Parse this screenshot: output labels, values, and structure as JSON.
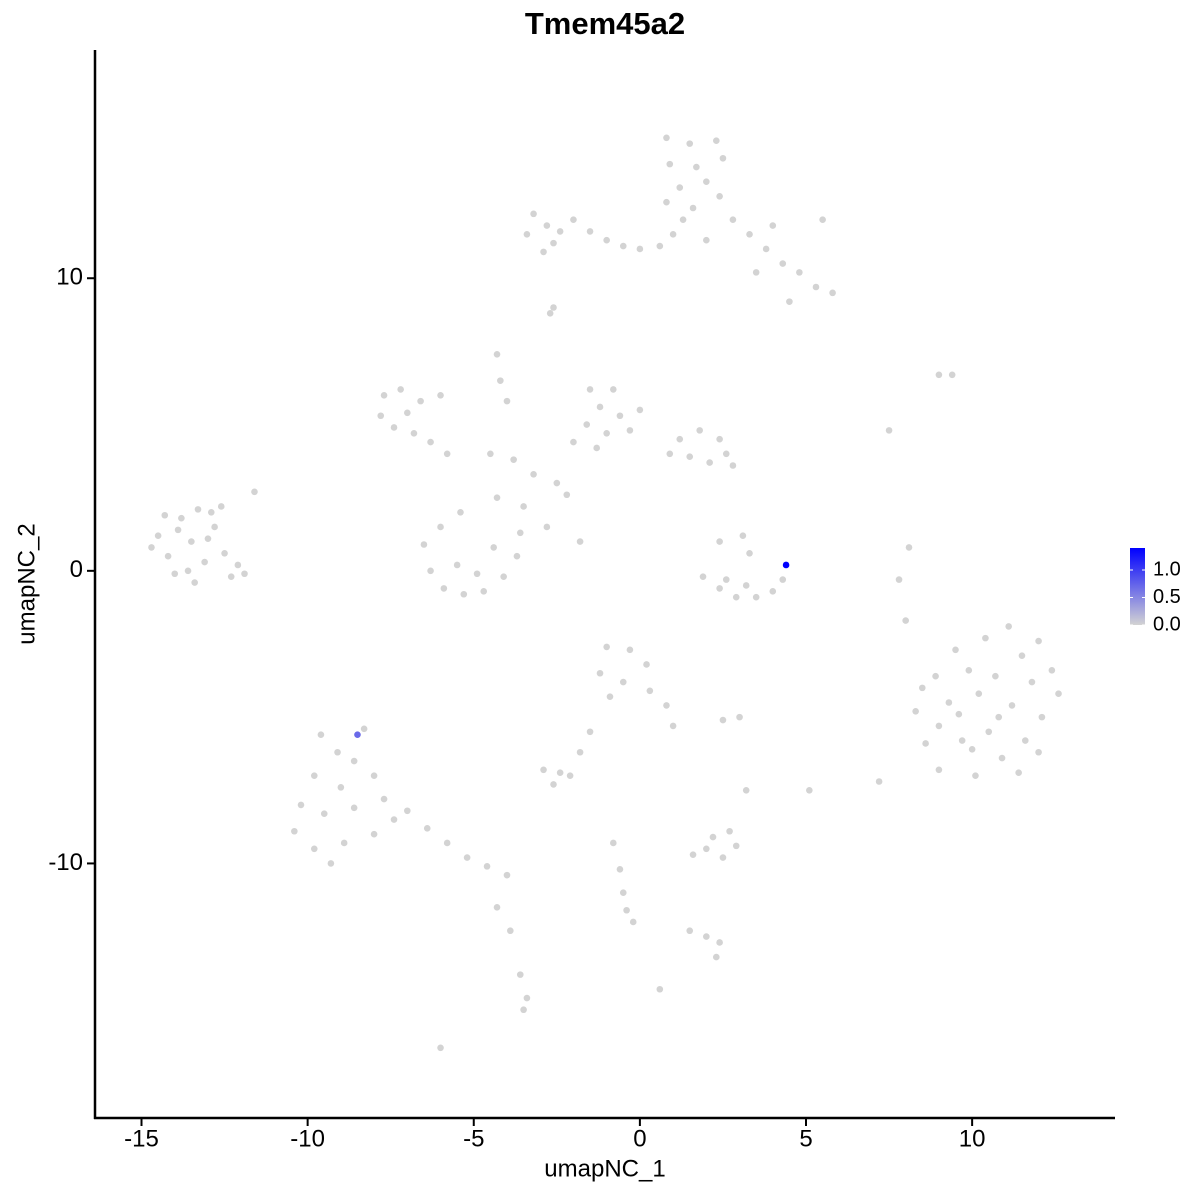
{
  "chart_data": {
    "type": "scatter",
    "title": "Tmem45a2",
    "x_label": "umapNC_1",
    "y_label": "umapNC_2",
    "x": [
      -14.5,
      -14.2,
      -13.8,
      -13.5,
      -13.1,
      -12.8,
      -13.3,
      -14.0,
      -12.5,
      -13.9,
      -12.9,
      -14.7,
      -13.6,
      -12.3,
      -13.0,
      -12.1,
      -14.3,
      -13.4,
      -11.6,
      -12.6,
      -11.9,
      0.8,
      1.5,
      2.3,
      0.9,
      1.7,
      2.5,
      1.2,
      2.0,
      0.8,
      1.6,
      2.4,
      1.3,
      2.8,
      3.3,
      3.8,
      4.3,
      4.8,
      5.3,
      5.8,
      4.0,
      5.5,
      3.5,
      4.5,
      2.0,
      1.0,
      0.6,
      -3.2,
      -2.8,
      -2.4,
      -2.0,
      -2.6,
      -1.5,
      -1.0,
      -0.5,
      0.0,
      -3.4,
      -2.9,
      -2.7,
      -2.6,
      -7.7,
      -7.2,
      -6.6,
      -7.8,
      -7.4,
      -6.8,
      -6.3,
      -5.8,
      -7.0,
      -6.0,
      -1.5,
      -0.8,
      -1.2,
      -0.6,
      -1.6,
      -1.0,
      -0.3,
      -2.0,
      0.0,
      -1.3,
      1.2,
      1.8,
      2.4,
      1.5,
      2.1,
      2.6,
      0.9,
      2.8,
      -4.5,
      -3.8,
      -3.2,
      -2.5,
      -2.2,
      -3.5,
      -4.3,
      -2.8,
      -1.8,
      -4.3,
      -4.2,
      -4.0,
      -6.5,
      -6.3,
      -5.9,
      -5.3,
      -4.7,
      -4.1,
      -3.7,
      -3.6,
      -5.5,
      -4.9,
      -4.4,
      -6.0,
      -5.4,
      1.9,
      2.4,
      2.9,
      3.5,
      4.0,
      4.3,
      3.2,
      2.6,
      3.1,
      3.3,
      2.4,
      8.3,
      8.6,
      8.9,
      9.0,
      9.3,
      9.5,
      9.7,
      9.9,
      10.1,
      10.2,
      10.4,
      10.5,
      10.7,
      10.9,
      11.1,
      11.2,
      11.5,
      11.6,
      11.8,
      12.0,
      12.1,
      12.4,
      12.6,
      9.6,
      10.8,
      11.4,
      9.0,
      10.0,
      12.0,
      8.5,
      8.1,
      7.8,
      8.0,
      9.4,
      9.0,
      7.5,
      -1.0,
      -0.3,
      0.2,
      -1.2,
      -0.5,
      0.3,
      -0.9,
      0.8,
      1.0,
      -1.5,
      -1.8,
      3.0,
      2.5,
      -9.6,
      -9.1,
      -8.3,
      -8.6,
      -9.8,
      -9.0,
      -8.0,
      -10.2,
      -9.5,
      -8.6,
      -7.7,
      -10.4,
      -9.8,
      -8.9,
      -8.0,
      -9.3,
      -7.4,
      -7.0,
      -6.4,
      -5.8,
      -5.2,
      -4.6,
      -4.0,
      -4.3,
      -3.9,
      -3.6,
      -3.4,
      -3.5,
      -6.0,
      -2.9,
      -2.4,
      -2.6,
      -2.1,
      1.6,
      2.0,
      2.5,
      2.9,
      2.2,
      2.7,
      7.2,
      5.1,
      3.2,
      -0.8,
      -0.6,
      -0.5,
      -0.4,
      -0.2,
      1.5,
      2.0,
      2.4,
      2.3,
      0.6,
      4.4,
      -8.5
    ],
    "y": [
      1.2,
      0.5,
      1.8,
      1.0,
      0.3,
      1.5,
      2.1,
      -0.1,
      0.6,
      1.4,
      2.0,
      0.8,
      0.0,
      -0.2,
      1.1,
      0.2,
      1.9,
      -0.4,
      2.7,
      2.2,
      -0.1,
      14.8,
      14.6,
      14.7,
      13.9,
      13.8,
      14.1,
      13.1,
      13.3,
      12.6,
      12.4,
      12.8,
      12.0,
      12.0,
      11.5,
      11.0,
      10.5,
      10.2,
      9.7,
      9.5,
      11.8,
      12.0,
      10.2,
      9.2,
      11.3,
      11.5,
      11.1,
      12.2,
      11.8,
      11.6,
      12.0,
      11.2,
      11.6,
      11.3,
      11.1,
      11.0,
      11.5,
      10.9,
      8.8,
      9.0,
      6.0,
      6.2,
      5.8,
      5.3,
      4.9,
      4.7,
      4.4,
      4.0,
      5.4,
      6.0,
      6.2,
      6.2,
      5.6,
      5.3,
      5.0,
      4.7,
      4.8,
      4.4,
      5.5,
      4.2,
      4.5,
      4.8,
      4.5,
      3.9,
      3.7,
      4.0,
      4.0,
      3.6,
      4.0,
      3.8,
      3.3,
      3.0,
      2.6,
      2.2,
      2.5,
      1.5,
      1.0,
      7.4,
      6.5,
      5.8,
      0.9,
      0.0,
      -0.6,
      -0.8,
      -0.7,
      -0.2,
      0.5,
      1.3,
      0.2,
      -0.1,
      0.8,
      1.5,
      2.0,
      -0.2,
      -0.6,
      -0.9,
      -0.9,
      -0.7,
      -0.3,
      -0.5,
      -0.3,
      1.2,
      0.6,
      1.0,
      -4.8,
      -5.9,
      -3.6,
      -6.8,
      -4.5,
      -2.7,
      -5.8,
      -3.4,
      -7.0,
      -4.2,
      -2.3,
      -5.5,
      -3.6,
      -6.4,
      -1.9,
      -4.6,
      -2.9,
      -5.8,
      -3.8,
      -2.4,
      -5.0,
      -3.4,
      -4.2,
      -4.9,
      -5.0,
      -6.9,
      -5.3,
      -6.1,
      -6.2,
      -4.0,
      0.8,
      -0.3,
      -1.7,
      6.7,
      6.7,
      4.8,
      -2.6,
      -2.7,
      -3.2,
      -3.5,
      -3.8,
      -4.1,
      -4.3,
      -4.6,
      -5.3,
      -5.5,
      -6.2,
      -5.0,
      -5.1,
      -5.6,
      -6.2,
      -5.4,
      -6.5,
      -7.0,
      -7.4,
      -7.0,
      -8.0,
      -8.3,
      -8.1,
      -7.8,
      -8.9,
      -9.5,
      -9.3,
      -9.0,
      -10.0,
      -8.5,
      -8.2,
      -8.8,
      -9.3,
      -9.8,
      -10.1,
      -10.4,
      -11.5,
      -12.3,
      -13.8,
      -14.6,
      -15.0,
      -16.3,
      -6.8,
      -6.9,
      -7.3,
      -7.0,
      -9.7,
      -9.5,
      -9.8,
      -9.4,
      -9.1,
      -8.9,
      -7.2,
      -7.5,
      -7.5,
      -9.3,
      -10.2,
      -11.0,
      -11.6,
      -12.0,
      -12.3,
      -12.5,
      -12.7,
      -13.2,
      -14.3,
      0.2,
      -5.6
    ],
    "values": [
      0,
      0,
      0,
      0,
      0,
      0,
      0,
      0,
      0,
      0,
      0,
      0,
      0,
      0,
      0,
      0,
      0,
      0,
      0,
      0,
      0,
      0,
      0,
      0,
      0,
      0,
      0,
      0,
      0,
      0,
      0,
      0,
      0,
      0,
      0,
      0,
      0,
      0,
      0,
      0,
      0,
      0,
      0,
      0,
      0,
      0,
      0,
      0,
      0,
      0,
      0,
      0,
      0,
      0,
      0,
      0,
      0,
      0,
      0,
      0,
      0,
      0,
      0,
      0,
      0,
      0,
      0,
      0,
      0,
      0,
      0,
      0,
      0,
      0,
      0,
      0,
      0,
      0,
      0,
      0,
      0,
      0,
      0,
      0,
      0,
      0,
      0,
      0,
      0,
      0,
      0,
      0,
      0,
      0,
      0,
      0,
      0,
      0,
      0,
      0,
      0,
      0,
      0,
      0,
      0,
      0,
      0,
      0,
      0,
      0,
      0,
      0,
      0,
      0,
      0,
      0,
      0,
      0,
      0,
      0,
      0,
      0,
      0,
      0,
      0,
      0,
      0,
      0,
      0,
      0,
      0,
      0,
      0,
      0,
      0,
      0,
      0,
      0,
      0,
      0,
      0,
      0,
      0,
      0,
      0,
      0,
      0,
      0,
      0,
      0,
      0,
      0,
      0,
      0,
      0,
      0,
      0,
      0,
      0,
      0,
      0,
      0,
      0,
      0,
      0,
      0,
      0,
      0,
      0,
      0,
      0,
      0,
      0,
      0,
      0,
      0,
      0,
      0,
      0,
      0,
      0,
      0,
      0,
      0,
      0,
      0,
      0,
      0,
      0,
      0,
      0,
      0,
      0,
      0,
      0,
      0,
      0,
      0,
      0,
      0,
      0,
      0,
      0,
      0,
      0,
      0,
      0,
      0,
      0,
      0,
      0,
      0,
      0,
      0,
      0,
      0,
      0,
      0,
      0,
      0,
      0,
      0,
      0,
      0,
      0,
      1.4,
      0.7
    ],
    "xlim": [
      -16.4,
      14.3
    ],
    "ylim": [
      -18.7,
      17.8
    ],
    "xticks": [
      -15,
      -10,
      -5,
      0,
      5,
      10
    ],
    "yticks": [
      -10,
      0,
      10
    ],
    "colorscale": {
      "low": "#d3d3d3",
      "high": "#0000ff",
      "lim": [
        0,
        1.4
      ],
      "ticks": [
        {
          "value": 0,
          "label": "0.0"
        },
        {
          "value": 0.5,
          "label": "0.5"
        },
        {
          "value": 1,
          "label": "1.0"
        }
      ]
    }
  }
}
